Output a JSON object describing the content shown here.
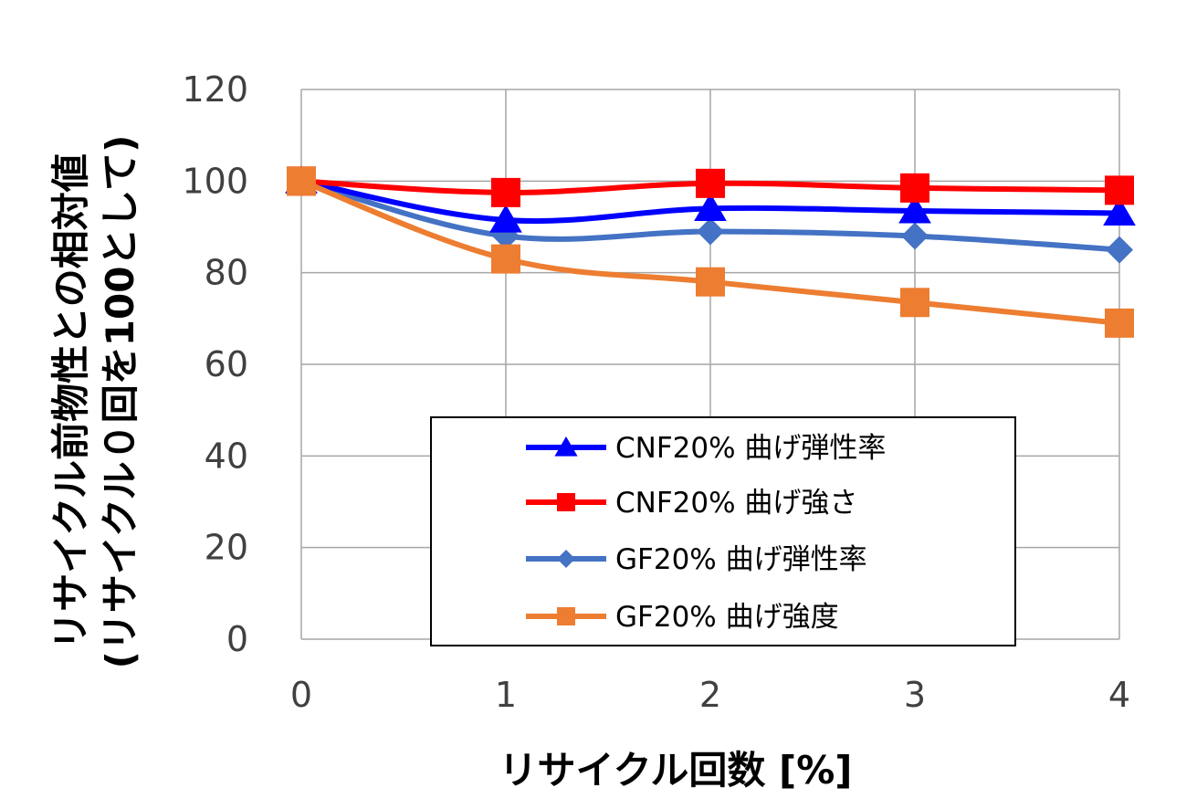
{
  "chart_data": {
    "type": "line",
    "title": "",
    "xlabel": "リサイクル回数 [%]",
    "ylabel_line1": "リサイクル前物性との相対値",
    "ylabel_line2": "(リサイクル０回を100として)",
    "x": [
      0,
      1,
      2,
      3,
      4
    ],
    "x_tick_labels": [
      "0",
      "1",
      "2",
      "3",
      "4"
    ],
    "ylim": [
      0,
      120
    ],
    "y_ticks": [
      0,
      20,
      40,
      60,
      80,
      100,
      120
    ],
    "y_tick_labels": [
      "0",
      "20",
      "40",
      "60",
      "80",
      "100",
      "120"
    ],
    "grid": true,
    "legend_position": "inside-lower-center",
    "series": [
      {
        "name": "CNF20% 曲げ弾性率",
        "color": "#0000FF",
        "marker": "triangle",
        "values": [
          100,
          91.5,
          94,
          93.5,
          93
        ]
      },
      {
        "name": "CNF20% 曲げ強さ",
        "color": "#FF0000",
        "marker": "square",
        "values": [
          100,
          97.5,
          99.5,
          98.5,
          98
        ]
      },
      {
        "name": "GF20% 曲げ弾性率",
        "color": "#4472C4",
        "marker": "diamond",
        "values": [
          100,
          88,
          89,
          88,
          85
        ]
      },
      {
        "name": "GF20% 曲げ強度",
        "color": "#ED7D31",
        "marker": "square",
        "values": [
          100,
          83,
          78,
          73.5,
          69
        ]
      }
    ]
  }
}
